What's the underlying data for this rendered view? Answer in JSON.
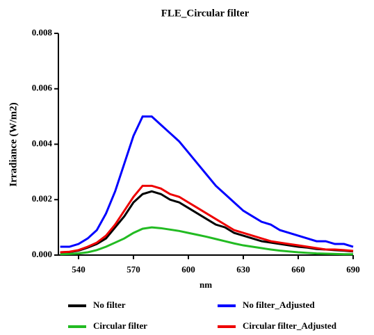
{
  "chart_data": {
    "type": "line",
    "title": "FLE_Circular filter",
    "x_label": "nm",
    "y_label": "Irradiance (W/m2)",
    "x": [
      530,
      535,
      540,
      545,
      550,
      555,
      560,
      565,
      570,
      575,
      580,
      585,
      590,
      595,
      600,
      605,
      610,
      615,
      620,
      625,
      630,
      635,
      640,
      645,
      650,
      655,
      660,
      665,
      670,
      675,
      680,
      685,
      690
    ],
    "series": [
      {
        "name": "No filter",
        "color": "#000000",
        "values": [
          0.0001,
          0.00011,
          0.00016,
          0.00027,
          0.0004,
          0.0006,
          0.001,
          0.0014,
          0.0019,
          0.0022,
          0.0023,
          0.0022,
          0.002,
          0.0019,
          0.0017,
          0.0015,
          0.0013,
          0.0011,
          0.001,
          0.0008,
          0.0007,
          0.0006,
          0.0005,
          0.00045,
          0.0004,
          0.00035,
          0.0003,
          0.00027,
          0.00022,
          0.0002,
          0.00018,
          0.00016,
          0.00013
        ]
      },
      {
        "name": "No filter_Adjusted",
        "color": "#0000ff",
        "values": [
          0.0003,
          0.0003,
          0.0004,
          0.0006,
          0.0009,
          0.0015,
          0.0023,
          0.0033,
          0.0043,
          0.005,
          0.005,
          0.0047,
          0.0044,
          0.0041,
          0.0037,
          0.0033,
          0.0029,
          0.0025,
          0.0022,
          0.0019,
          0.0016,
          0.0014,
          0.0012,
          0.0011,
          0.0009,
          0.0008,
          0.0007,
          0.0006,
          0.0005,
          0.0005,
          0.0004,
          0.0004,
          0.0003
        ]
      },
      {
        "name": "Circular filter",
        "color": "#22bb22",
        "values": [
          3e-05,
          4e-05,
          6e-05,
          0.0001,
          0.00018,
          0.0003,
          0.00045,
          0.0006,
          0.0008,
          0.00095,
          0.001,
          0.00097,
          0.00092,
          0.00087,
          0.0008,
          0.00073,
          0.00066,
          0.00058,
          0.0005,
          0.00042,
          0.00035,
          0.0003,
          0.00025,
          0.0002,
          0.00016,
          0.00013,
          0.0001,
          8e-05,
          6e-05,
          5e-05,
          4e-05,
          3e-05,
          3e-05
        ]
      },
      {
        "name": "Circular filter_Adjusted",
        "color": "#ee0000",
        "values": [
          0.0001,
          0.00012,
          0.00018,
          0.0003,
          0.00045,
          0.0007,
          0.0011,
          0.0016,
          0.0021,
          0.0025,
          0.0025,
          0.0024,
          0.0022,
          0.0021,
          0.0019,
          0.0017,
          0.0015,
          0.0013,
          0.0011,
          0.0009,
          0.0008,
          0.0007,
          0.0006,
          0.0005,
          0.00045,
          0.0004,
          0.00035,
          0.0003,
          0.00025,
          0.0002,
          0.0002,
          0.00018,
          0.00015
        ]
      }
    ],
    "xlim": [
      529,
      690
    ],
    "xticks": [
      540,
      570,
      600,
      630,
      660,
      690
    ],
    "ylim": [
      0,
      0.008
    ],
    "yticks": [
      {
        "value": 0,
        "label": "0.000"
      },
      0.002,
      0.004,
      0.006,
      0.008
    ]
  }
}
